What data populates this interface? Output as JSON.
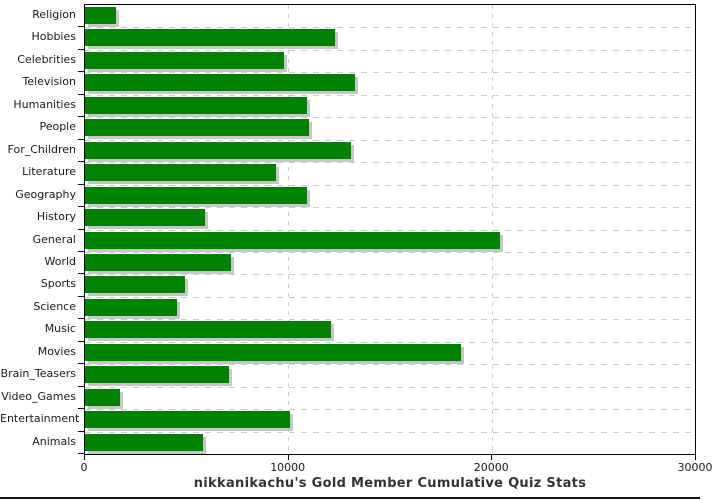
{
  "chart_data": {
    "type": "bar",
    "orientation": "horizontal",
    "title": "nikkanikachu's Gold Member Cumulative Quiz Stats",
    "categories": [
      "Religion",
      "Hobbies",
      "Celebrities",
      "Television",
      "Humanities",
      "People",
      "For_Children",
      "Literature",
      "Geography",
      "History",
      "General",
      "World",
      "Sports",
      "Science",
      "Music",
      "Movies",
      "Brain_Teasers",
      "Video_Games",
      "Entertainment",
      "Animals"
    ],
    "values": [
      1500,
      12300,
      9800,
      13300,
      10900,
      11000,
      13100,
      9400,
      10900,
      5900,
      20400,
      7200,
      4900,
      4500,
      12100,
      18500,
      7100,
      1700,
      10100,
      5800
    ],
    "xlim": [
      0,
      30000
    ],
    "x_ticks": [
      0,
      10000,
      20000,
      30000
    ],
    "x_tick_labels": [
      "0",
      "10000",
      "20000",
      "30000"
    ],
    "grid": true,
    "legend": false,
    "colors": {
      "bar": "#008000",
      "bar_shadow": "#c6c6c6",
      "grid": "#cccccc",
      "axis": "#000000",
      "label": "#1a1a1a",
      "title": "#333333",
      "background": "#ffffff"
    }
  }
}
